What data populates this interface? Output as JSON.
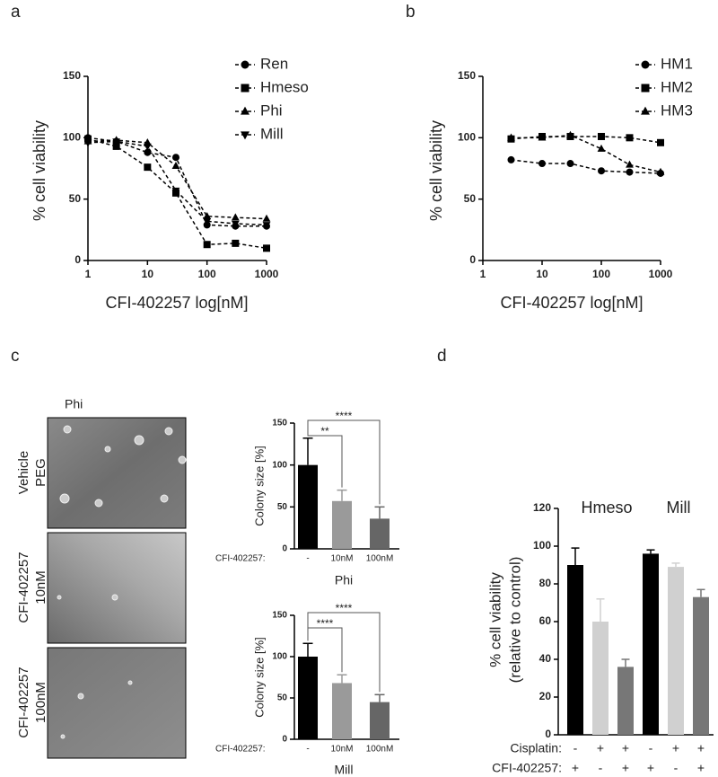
{
  "chart_data": [
    {
      "type": "line",
      "panel_label": "a",
      "x_label": "CFI-402257 log[nM]",
      "y_label": "% cell viability",
      "x": [
        1,
        3,
        10,
        30,
        100,
        300,
        1000
      ],
      "xlim": [
        1,
        1000
      ],
      "xticks": [
        1,
        10,
        100,
        1000
      ],
      "log_x": true,
      "ylim": [
        0,
        150
      ],
      "yticks": [
        0,
        50,
        100,
        150
      ],
      "series": [
        {
          "name": "Ren",
          "color": "#000000",
          "marker": "circle",
          "values": [
            100,
            97,
            88,
            84,
            29,
            28,
            28
          ]
        },
        {
          "name": "Hmeso",
          "color": "#000000",
          "marker": "square",
          "values": [
            99,
            93,
            76,
            55,
            13,
            14,
            10
          ]
        },
        {
          "name": "Phi",
          "color": "#000000",
          "marker": "triangle",
          "values": [
            97,
            98,
            96,
            77,
            36,
            35,
            34
          ]
        },
        {
          "name": "Mill",
          "color": "#000000",
          "marker": "triangle-down",
          "values": [
            96,
            97,
            93,
            57,
            32,
            30,
            29
          ]
        }
      ]
    },
    {
      "type": "line",
      "panel_label": "b",
      "x_label": "CFI-402257 log[nM]",
      "y_label": "% cell viability",
      "x": [
        3,
        10,
        30,
        100,
        300,
        1000
      ],
      "xlim": [
        1,
        1000
      ],
      "xticks": [
        1,
        10,
        100,
        1000
      ],
      "log_x": true,
      "ylim": [
        0,
        150
      ],
      "yticks": [
        0,
        50,
        100,
        150
      ],
      "series": [
        {
          "name": "HM1",
          "color": "#000000",
          "marker": "circle",
          "values": [
            82,
            79,
            79,
            73,
            72,
            71
          ]
        },
        {
          "name": "HM2",
          "color": "#000000",
          "marker": "square",
          "values": [
            99,
            101,
            101,
            101,
            100,
            96
          ]
        },
        {
          "name": "HM3",
          "color": "#000000",
          "marker": "triangle",
          "values": [
            100,
            100,
            102,
            91,
            78,
            72
          ]
        }
      ]
    },
    {
      "type": "bar",
      "panel_label": "c",
      "title": "Phi",
      "x_label": "CFI-402257:",
      "y_label": "Colony size [%]",
      "categories": [
        "-",
        "10nM",
        "100nM"
      ],
      "values": [
        100,
        57,
        36
      ],
      "errors": [
        32,
        13,
        14
      ],
      "colors": [
        "#000000",
        "#9a9a9a",
        "#666666"
      ],
      "ylim": [
        0,
        150
      ],
      "yticks": [
        0,
        50,
        100,
        150
      ],
      "significance": [
        "**",
        "****"
      ]
    },
    {
      "type": "bar",
      "title": "Mill",
      "x_label": "CFI-402257:",
      "y_label": "Colony size [%]",
      "categories": [
        "-",
        "10nM",
        "100nM"
      ],
      "values": [
        100,
        68,
        45
      ],
      "errors": [
        16,
        10,
        9
      ],
      "colors": [
        "#000000",
        "#9a9a9a",
        "#666666"
      ],
      "ylim": [
        0,
        150
      ],
      "yticks": [
        0,
        50,
        100,
        150
      ],
      "significance": [
        "****",
        "****"
      ]
    },
    {
      "type": "bar",
      "panel_label": "d",
      "y_label": [
        "% cell viability",
        "(relative to control)"
      ],
      "values": [
        90,
        60,
        36,
        96,
        89,
        73
      ],
      "errors": [
        9,
        12,
        4,
        2,
        2,
        4
      ],
      "colors": [
        "#000000",
        "#d0d0d0",
        "#777777",
        "#000000",
        "#d0d0d0",
        "#777777"
      ],
      "ylim": [
        0,
        120
      ],
      "yticks": [
        0,
        20,
        40,
        60,
        80,
        100,
        120
      ],
      "groups": [
        "Hmeso",
        "Mill"
      ],
      "rows": [
        {
          "label": "Cisplatin:",
          "values": [
            "-",
            "+",
            "+",
            "-",
            "+",
            "+"
          ]
        },
        {
          "label": "CFI-402257:",
          "values": [
            "+",
            "-",
            "+",
            "+",
            "-",
            "+"
          ]
        }
      ]
    }
  ],
  "images": {
    "title": "Phi",
    "labels": [
      [
        "Vehicle",
        "PEG"
      ],
      [
        "CFI-402257",
        "10nM"
      ],
      [
        "CFI-402257",
        "100nM"
      ]
    ]
  }
}
